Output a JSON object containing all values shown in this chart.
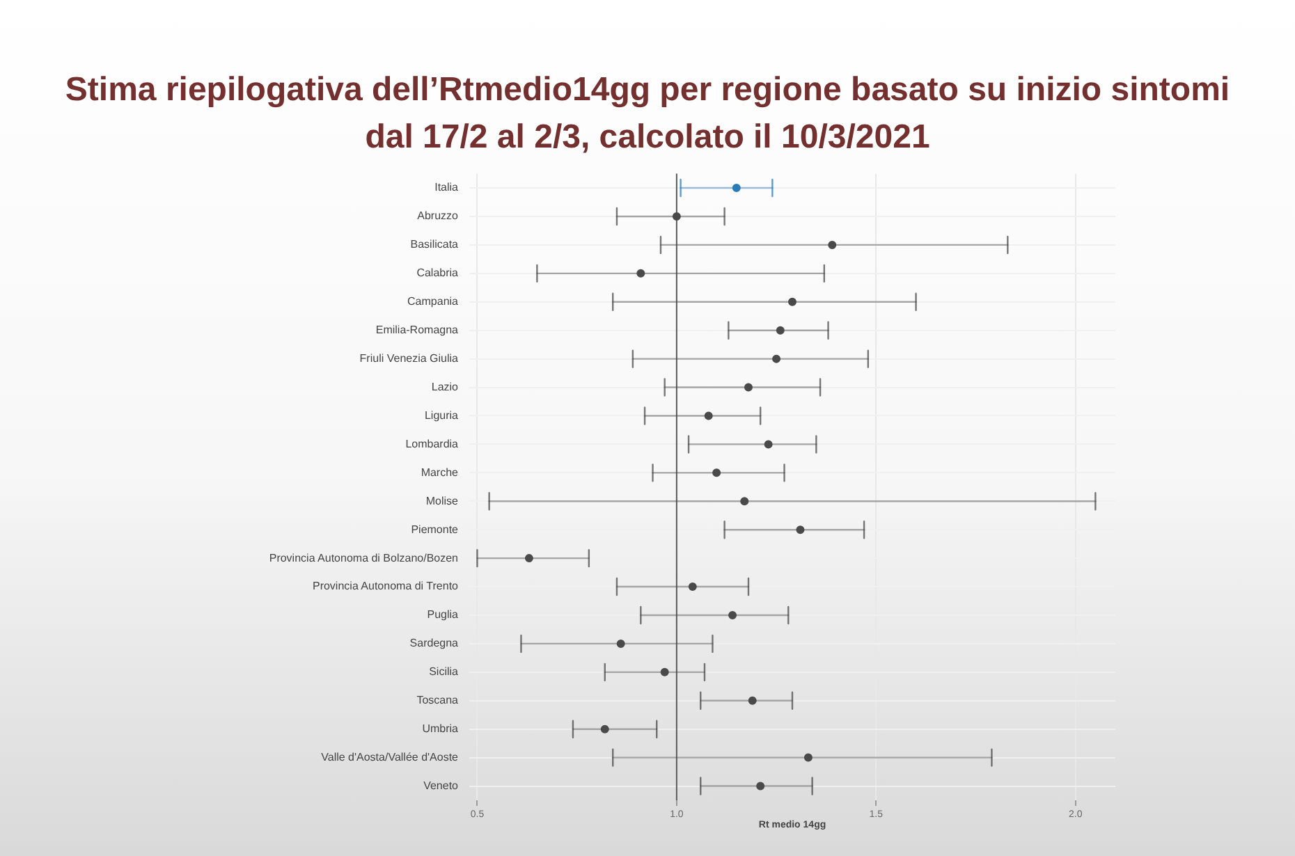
{
  "chart_data": {
    "type": "scatter",
    "title": "Stima riepilogativa dell’Rtmedio14gg per regione basato su inizio sintomi dal 17/2 al 2/3, calcolato il 10/3/2021",
    "xlabel": "Rt medio 14gg",
    "orientation": "horizontal",
    "categories": [
      "Italia",
      "Abruzzo",
      "Basilicata",
      "Calabria",
      "Campania",
      "Emilia-Romagna",
      "Friuli Venezia Giulia",
      "Lazio",
      "Liguria",
      "Lombardia",
      "Marche",
      "Molise",
      "Piemonte",
      "Provincia Autonoma di Bolzano/Bozen",
      "Provincia Autonoma di Trento",
      "Puglia",
      "Sardegna",
      "Sicilia",
      "Toscana",
      "Umbria",
      "Valle d'Aosta/Vallée d'Aoste",
      "Veneto"
    ],
    "values": [
      1.15,
      1.0,
      1.39,
      0.91,
      1.29,
      1.26,
      1.25,
      1.18,
      1.08,
      1.23,
      1.1,
      1.17,
      1.31,
      0.63,
      1.04,
      1.14,
      0.86,
      0.97,
      1.19,
      0.82,
      1.33,
      1.21
    ],
    "errors": [
      [
        1.01,
        1.24
      ],
      [
        0.85,
        1.12
      ],
      [
        0.96,
        1.83
      ],
      [
        0.65,
        1.37
      ],
      [
        0.84,
        1.6
      ],
      [
        1.13,
        1.38
      ],
      [
        0.89,
        1.48
      ],
      [
        0.97,
        1.36
      ],
      [
        0.92,
        1.21
      ],
      [
        1.03,
        1.35
      ],
      [
        0.94,
        1.27
      ],
      [
        0.53,
        2.05
      ],
      [
        1.12,
        1.47
      ],
      [
        0.5,
        0.78
      ],
      [
        0.85,
        1.18
      ],
      [
        0.91,
        1.28
      ],
      [
        0.61,
        1.09
      ],
      [
        0.82,
        1.07
      ],
      [
        1.06,
        1.29
      ],
      [
        0.74,
        0.95
      ],
      [
        0.84,
        1.79
      ],
      [
        1.06,
        1.34
      ]
    ],
    "colors": [
      "#2b7bb9",
      "#4a4a4a",
      "#4a4a4a",
      "#4a4a4a",
      "#4a4a4a",
      "#4a4a4a",
      "#4a4a4a",
      "#4a4a4a",
      "#4a4a4a",
      "#4a4a4a",
      "#4a4a4a",
      "#4a4a4a",
      "#4a4a4a",
      "#4a4a4a",
      "#4a4a4a",
      "#4a4a4a",
      "#4a4a4a",
      "#4a4a4a",
      "#4a4a4a",
      "#4a4a4a",
      "#4a4a4a",
      "#4a4a4a"
    ],
    "xlim": [
      0.48,
      2.1
    ],
    "xticks": [
      0.5,
      {
        "value": 1,
        "label": "1.0"
      },
      1.5,
      {
        "value": 2,
        "label": "2.0"
      }
    ],
    "marker": "circle",
    "grid": true,
    "ref_lines": [
      {
        "axis": "x",
        "value": 1,
        "color": "#5a5a5a"
      }
    ]
  }
}
